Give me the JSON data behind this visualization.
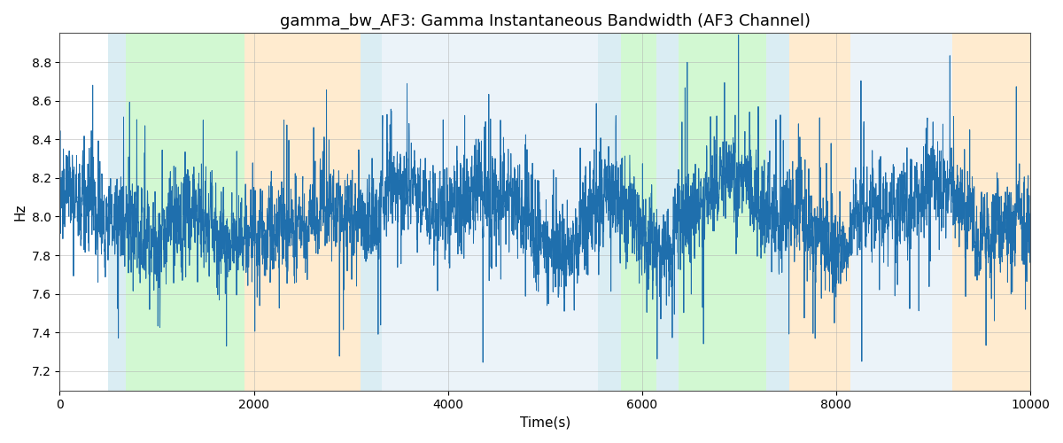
{
  "title": "gamma_bw_AF3: Gamma Instantaneous Bandwidth (AF3 Channel)",
  "xlabel": "Time(s)",
  "ylabel": "Hz",
  "xlim": [
    0,
    10000
  ],
  "ylim": [
    7.1,
    8.95
  ],
  "line_color": "#1f6fad",
  "line_width": 0.7,
  "background_color": "#ffffff",
  "grid_color": "#b0b0b0",
  "seed": 137,
  "n_points": 5000,
  "colored_bands": [
    {
      "xmin": 500,
      "xmax": 680,
      "color": "#add8e6",
      "alpha": 0.45
    },
    {
      "xmin": 680,
      "xmax": 1900,
      "color": "#90ee90",
      "alpha": 0.4
    },
    {
      "xmin": 1900,
      "xmax": 3100,
      "color": "#ffd8a0",
      "alpha": 0.5
    },
    {
      "xmin": 3100,
      "xmax": 3320,
      "color": "#add8e6",
      "alpha": 0.45
    },
    {
      "xmin": 3320,
      "xmax": 5550,
      "color": "#c8dff0",
      "alpha": 0.35
    },
    {
      "xmin": 5550,
      "xmax": 5780,
      "color": "#add8e6",
      "alpha": 0.45
    },
    {
      "xmin": 5780,
      "xmax": 6150,
      "color": "#90ee90",
      "alpha": 0.4
    },
    {
      "xmin": 6150,
      "xmax": 6380,
      "color": "#add8e6",
      "alpha": 0.45
    },
    {
      "xmin": 6380,
      "xmax": 7280,
      "color": "#90ee90",
      "alpha": 0.4
    },
    {
      "xmin": 7280,
      "xmax": 7520,
      "color": "#add8e6",
      "alpha": 0.45
    },
    {
      "xmin": 7520,
      "xmax": 8150,
      "color": "#ffd8a0",
      "alpha": 0.5
    },
    {
      "xmin": 8150,
      "xmax": 9200,
      "color": "#c8dff0",
      "alpha": 0.35
    },
    {
      "xmin": 9200,
      "xmax": 10000,
      "color": "#ffd8a0",
      "alpha": 0.5
    }
  ],
  "title_fontsize": 13,
  "axis_fontsize": 11,
  "tick_fontsize": 10,
  "xticks": [
    0,
    2000,
    4000,
    6000,
    8000,
    10000
  ],
  "yticks": [
    7.2,
    7.4,
    7.6,
    7.8,
    8.0,
    8.2,
    8.4,
    8.6,
    8.8
  ]
}
